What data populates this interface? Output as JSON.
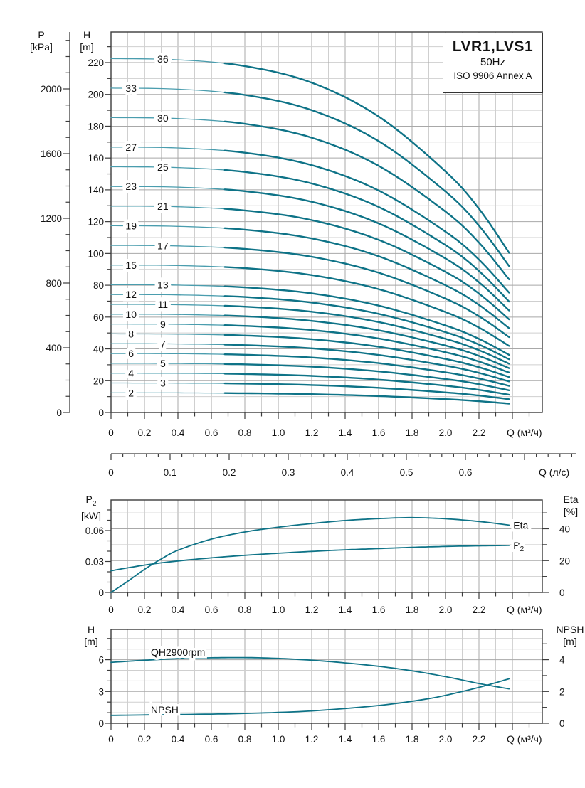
{
  "colors": {
    "curve_bold": "#0e7387",
    "curve_thin": "#4a9dae",
    "grid_minor": "#cfcfcf",
    "grid_major": "#a8a8a8",
    "axis": "#3c3c3c",
    "text": "#121212"
  },
  "title_box": {
    "model": "LVR1,LVS1",
    "frequency": "50Hz",
    "standard": "ISO 9906 Annex A"
  },
  "axis_titles": {
    "main_p": [
      "P",
      "[kPa]"
    ],
    "main_h": [
      "H",
      "[m]"
    ],
    "mid_left": [
      "P2",
      "[kW]"
    ],
    "mid_right": [
      "Eta",
      "[%]"
    ],
    "bot_left": [
      "H",
      "[m]"
    ],
    "bot_right": [
      "NPSH",
      "[m]"
    ]
  },
  "chart_data": [
    {
      "id": "qh-stage-family",
      "type": "line",
      "xlabel": "Q (м³/ч)",
      "x2label": "Q (л/с)",
      "ylabel": "H [m]",
      "y2label": "P [kPa]",
      "x_tick_labels": [
        "0",
        "0.2",
        "0.4",
        "0.6",
        "0.8",
        "1.0",
        "1.2",
        "1.4",
        "1.6",
        "1.8",
        "2.0",
        "2.2"
      ],
      "x_minor_step": 0.1,
      "x_range": [
        0,
        2.58
      ],
      "x2_tick_labels": [
        "0",
        "0.1",
        "0.2",
        "0.3",
        "0.4",
        "0.5",
        "0.6"
      ],
      "x2_minor_step": 0.02,
      "x2_range": [
        0,
        0.787
      ],
      "h_tick_labels": [
        "0",
        "20",
        "40",
        "60",
        "80",
        "100",
        "120",
        "140",
        "160",
        "180",
        "200",
        "220"
      ],
      "h_minor_step": 10,
      "h_range": [
        0,
        239
      ],
      "p_tick_labels": [
        "0",
        "400",
        "800",
        "1200",
        "1600",
        "2000"
      ],
      "p_minor_step": 100,
      "p_range": [
        0,
        2350
      ],
      "grid": true,
      "legend_position": "on-curve",
      "bold_from_q": 0.7,
      "q_samples": [
        0,
        0.4,
        0.8,
        1.2,
        1.6,
        2.0,
        2.2,
        2.38
      ],
      "head_per_stage": [
        6.18,
        6.16,
        6.05,
        5.76,
        5.17,
        4.21,
        3.56,
        2.79
      ],
      "curves": [
        {
          "stages": 36,
          "label_q": 0.31
        },
        {
          "stages": 33,
          "label_q": 0.12
        },
        {
          "stages": 30,
          "label_q": 0.31
        },
        {
          "stages": 27,
          "label_q": 0.12
        },
        {
          "stages": 25,
          "label_q": 0.31
        },
        {
          "stages": 23,
          "label_q": 0.12
        },
        {
          "stages": 21,
          "label_q": 0.31
        },
        {
          "stages": 19,
          "label_q": 0.12
        },
        {
          "stages": 17,
          "label_q": 0.31
        },
        {
          "stages": 15,
          "label_q": 0.12
        },
        {
          "stages": 13,
          "label_q": 0.31
        },
        {
          "stages": 12,
          "label_q": 0.12
        },
        {
          "stages": 11,
          "label_q": 0.31
        },
        {
          "stages": 10,
          "label_q": 0.12
        },
        {
          "stages": 9,
          "label_q": 0.31
        },
        {
          "stages": 8,
          "label_q": 0.12
        },
        {
          "stages": 7,
          "label_q": 0.31
        },
        {
          "stages": 6,
          "label_q": 0.12
        },
        {
          "stages": 5,
          "label_q": 0.31
        },
        {
          "stages": 4,
          "label_q": 0.12
        },
        {
          "stages": 3,
          "label_q": 0.31
        },
        {
          "stages": 2,
          "label_q": 0.12
        }
      ]
    },
    {
      "id": "p2-eta",
      "type": "line",
      "xlabel": "Q (м³/ч)",
      "ylabel_left": "P2 [kW]",
      "ylabel_right": "Eta [%]",
      "x_tick_labels": [
        "0",
        "0.2",
        "0.4",
        "0.6",
        "0.8",
        "1.0",
        "1.2",
        "1.4",
        "1.6",
        "1.8",
        "2.0",
        "2.2"
      ],
      "x_minor_step": 0.1,
      "x_range": [
        0,
        2.58
      ],
      "p2_tick_labels": [
        "0",
        "0.03",
        "0.06"
      ],
      "p2_minor_step": 0.01,
      "p2_range": [
        0,
        0.09
      ],
      "eta_tick_labels": [
        "0",
        "20",
        "40"
      ],
      "eta_minor_step": 10,
      "eta_range": [
        0,
        58
      ],
      "grid": true,
      "series": [
        {
          "name": "P2",
          "axis": "left",
          "x": [
            0,
            0.2,
            0.4,
            0.6,
            0.8,
            1.0,
            1.2,
            1.4,
            1.6,
            1.8,
            2.0,
            2.2,
            2.38
          ],
          "y": [
            0.021,
            0.0265,
            0.0305,
            0.0335,
            0.036,
            0.038,
            0.0398,
            0.0413,
            0.0425,
            0.0437,
            0.0446,
            0.0452,
            0.0456
          ]
        },
        {
          "name": "Eta",
          "axis": "right",
          "x": [
            0,
            0.1,
            0.2,
            0.3,
            0.4,
            0.6,
            0.8,
            1.0,
            1.2,
            1.4,
            1.6,
            1.8,
            2.0,
            2.2,
            2.38
          ],
          "y": [
            0,
            7,
            14.5,
            21,
            26.5,
            33.5,
            38,
            41,
            43.3,
            45.2,
            46.4,
            47,
            46.3,
            44.6,
            42.3
          ]
        }
      ]
    },
    {
      "id": "qh-npsh-single-stage",
      "type": "line",
      "xlabel": "Q (м³/ч)",
      "ylabel_left": "H [m]",
      "ylabel_right": "NPSH [m]",
      "x_tick_labels": [
        "0",
        "0.2",
        "0.4",
        "0.6",
        "0.8",
        "1.0",
        "1.2",
        "1.4",
        "1.6",
        "1.8",
        "2.0",
        "2.2"
      ],
      "x_minor_step": 0.1,
      "x_range": [
        0,
        2.58
      ],
      "h_tick_labels": [
        "0",
        "3",
        "6"
      ],
      "h_minor_step": 1,
      "h_range": [
        0,
        8.9
      ],
      "npsh_tick_labels": [
        "0",
        "2",
        "4"
      ],
      "npsh_minor_step": 1,
      "npsh_range": [
        0,
        5.9
      ],
      "grid": true,
      "series": [
        {
          "name": "QH2900rpm",
          "axis": "left",
          "x": [
            0,
            0.2,
            0.4,
            0.6,
            0.8,
            1.0,
            1.2,
            1.4,
            1.6,
            1.8,
            2.0,
            2.2,
            2.38
          ],
          "y": [
            5.75,
            5.95,
            6.1,
            6.18,
            6.2,
            6.12,
            5.95,
            5.7,
            5.38,
            4.95,
            4.4,
            3.75,
            3.25
          ]
        },
        {
          "name": "NPSH",
          "axis": "right",
          "x": [
            0,
            0.4,
            0.8,
            1.2,
            1.6,
            1.9,
            2.1,
            2.25,
            2.38
          ],
          "y": [
            0.5,
            0.55,
            0.62,
            0.78,
            1.12,
            1.55,
            2.0,
            2.4,
            2.8
          ]
        }
      ]
    }
  ]
}
